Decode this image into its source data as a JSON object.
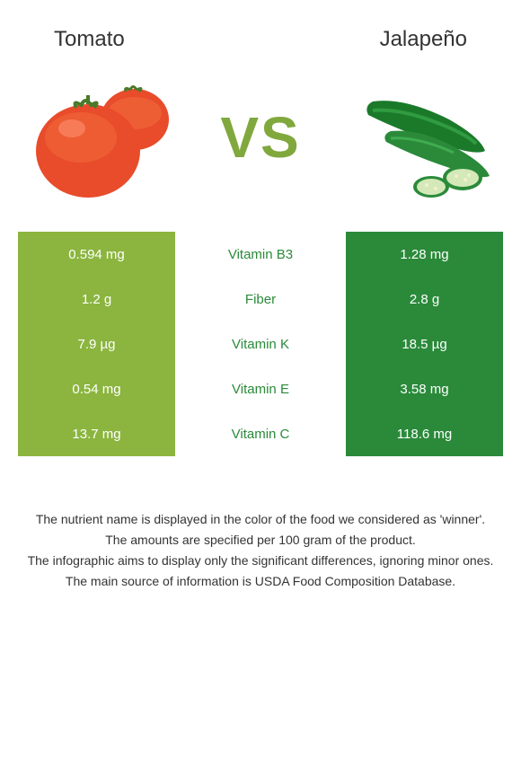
{
  "header": {
    "left_title": "Tomato",
    "right_title": "Jalapeño",
    "vs_label": "VS"
  },
  "colors": {
    "left_food": "#8bb53f",
    "right_food": "#2a8a3a",
    "vs_text": "#80a83d",
    "background": "#ffffff",
    "text": "#333333"
  },
  "rows": [
    {
      "nutrient": "Vitamin B3",
      "left_value": "0.594 mg",
      "right_value": "1.28 mg",
      "winner": "right"
    },
    {
      "nutrient": "Fiber",
      "left_value": "1.2 g",
      "right_value": "2.8 g",
      "winner": "right"
    },
    {
      "nutrient": "Vitamin K",
      "left_value": "7.9 µg",
      "right_value": "18.5 µg",
      "winner": "right"
    },
    {
      "nutrient": "Vitamin E",
      "left_value": "0.54 mg",
      "right_value": "3.58 mg",
      "winner": "right"
    },
    {
      "nutrient": "Vitamin C",
      "left_value": "13.7 mg",
      "right_value": "118.6 mg",
      "winner": "right"
    }
  ],
  "footnotes": [
    "The nutrient name is displayed in the color of the food we considered as 'winner'.",
    "The amounts are specified per 100 gram of the product.",
    "The infographic aims to display only the significant differences, ignoring minor ones.",
    "The main source of information is USDA Food Composition Database."
  ]
}
